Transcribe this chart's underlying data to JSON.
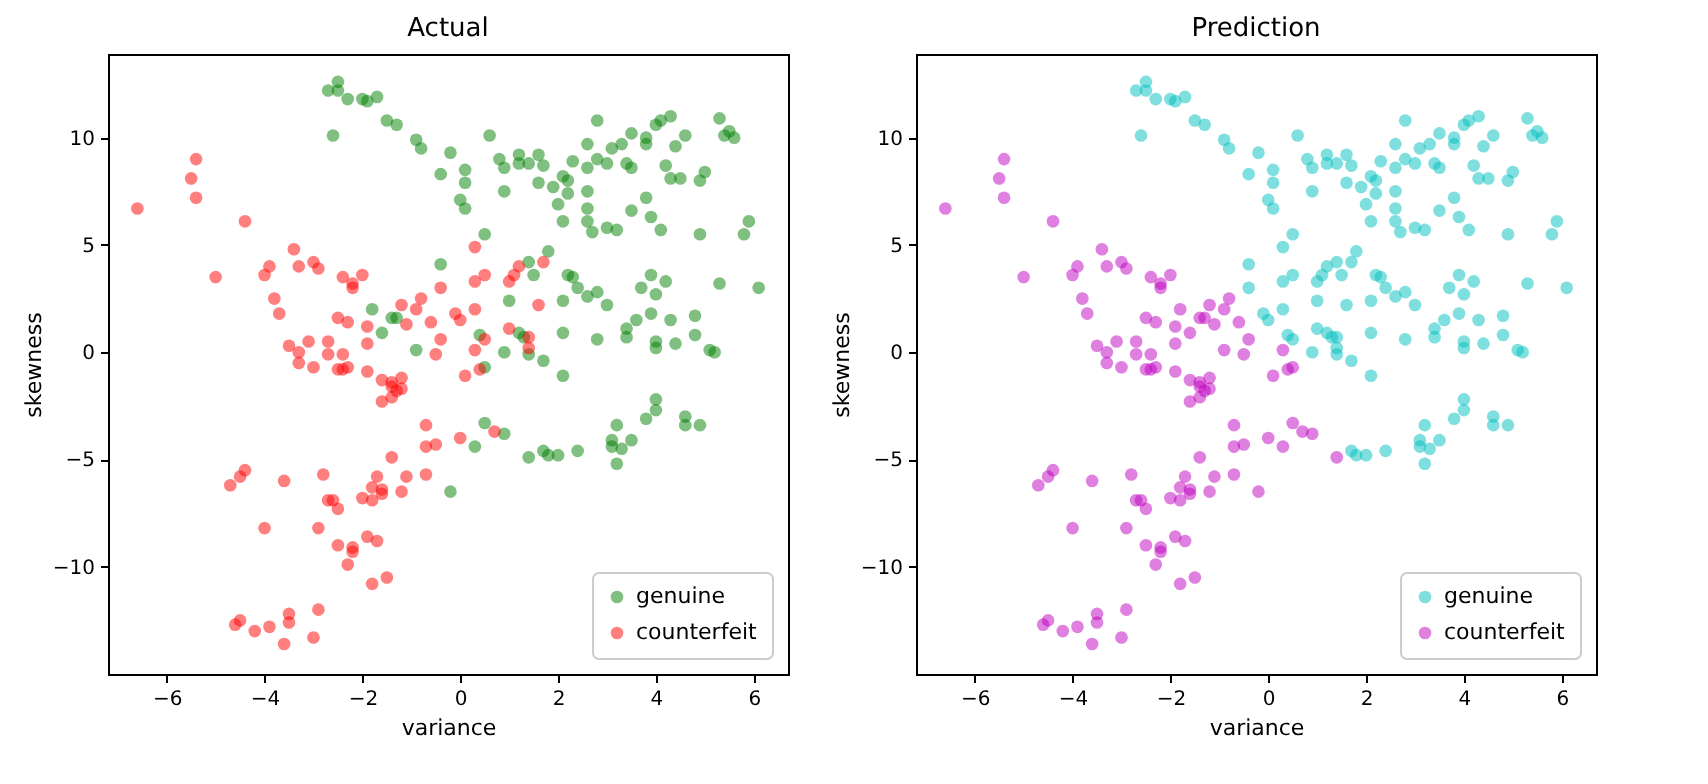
{
  "chart_data": [
    {
      "type": "scatter",
      "title": "Actual",
      "xlabel": "variance",
      "ylabel": "skewness",
      "xlim": [
        -7.2,
        6.7
      ],
      "ylim": [
        -15.0,
        13.9
      ],
      "xticks": [
        -6,
        -4,
        -2,
        0,
        2,
        4,
        6
      ],
      "yticks": [
        -10,
        -5,
        0,
        5,
        10
      ],
      "legend": "bottom right",
      "marker": "circle",
      "grid": false,
      "series": [
        {
          "name": "genuine",
          "color": "#008000",
          "x": [
            -2.7,
            -2.5,
            -2.5,
            -2.3,
            -2.0,
            -1.9,
            -1.7,
            -1.5,
            -1.3,
            -0.9,
            -0.8,
            -2.6,
            -0.2,
            0.6,
            -0.4,
            0.1,
            0.1,
            0.0,
            0.1,
            0.8,
            0.9,
            1.2,
            1.2,
            1.4,
            1.6,
            1.7,
            0.9,
            1.6,
            1.9,
            2.1,
            2.2,
            2.3,
            2.6,
            2.8,
            2.6,
            2.8,
            3.0,
            3.1,
            3.3,
            3.4,
            3.5,
            3.5,
            3.8,
            3.8,
            4.0,
            4.1,
            4.3,
            4.4,
            4.6,
            4.2,
            4.3,
            4.5,
            4.9,
            5.0,
            5.3,
            5.4,
            5.5,
            5.6,
            2.1,
            2.0,
            2.2,
            2.6,
            2.6,
            2.6,
            2.7,
            3.0,
            3.2,
            3.5,
            3.8,
            3.9,
            4.1,
            4.9,
            5.8,
            5.9,
            0.5,
            -0.4,
            1.4,
            1.8,
            1.5,
            2.2,
            2.3,
            2.4,
            2.6,
            2.8,
            3.0,
            2.1,
            1.0,
            3.7,
            3.9,
            4.2,
            4.0,
            3.9,
            4.3,
            3.6,
            3.4,
            3.4,
            4.0,
            4.0,
            4.4,
            4.8,
            4.8,
            5.1,
            5.2,
            5.3,
            6.1,
            2.1,
            2.8,
            1.7,
            2.1,
            0.9,
            0.4,
            1.2,
            1.3,
            1.4,
            1.7,
            1.8,
            2.0,
            2.4,
            3.1,
            3.2,
            3.1,
            3.3,
            3.2,
            3.5,
            3.8,
            4.0,
            4.0,
            4.6,
            4.6,
            4.9,
            -1.8,
            -1.4,
            -1.3,
            -1.6,
            -0.9,
            0.5,
            0.5,
            0.9,
            0.3,
            -0.2,
            1.4
          ],
          "values": [
            12.2,
            12.6,
            12.2,
            11.8,
            11.8,
            11.7,
            11.9,
            10.8,
            10.6,
            9.9,
            9.5,
            10.1,
            9.3,
            10.1,
            8.3,
            8.5,
            7.9,
            7.1,
            6.7,
            9.0,
            8.6,
            9.2,
            8.8,
            8.8,
            9.2,
            8.7,
            7.5,
            7.9,
            7.7,
            8.2,
            8.0,
            8.9,
            9.7,
            10.8,
            8.6,
            9.0,
            8.8,
            9.5,
            9.7,
            8.8,
            8.6,
            10.2,
            10.0,
            9.7,
            10.6,
            10.8,
            11.0,
            9.6,
            10.1,
            8.7,
            8.1,
            8.1,
            8.0,
            8.4,
            10.9,
            10.1,
            10.3,
            10.0,
            6.1,
            6.9,
            7.4,
            7.5,
            6.7,
            6.1,
            5.6,
            5.8,
            5.7,
            6.6,
            7.2,
            6.3,
            5.7,
            5.5,
            5.5,
            6.1,
            5.5,
            4.1,
            4.2,
            4.7,
            3.6,
            3.6,
            3.5,
            3.0,
            2.6,
            2.8,
            2.2,
            2.4,
            2.4,
            3.0,
            3.6,
            3.3,
            2.7,
            1.8,
            1.5,
            1.5,
            1.1,
            0.7,
            0.5,
            0.2,
            0.4,
            1.7,
            0.8,
            0.1,
            0.0,
            3.2,
            3.0,
            0.9,
            0.6,
            -0.4,
            -1.1,
            0.0,
            0.8,
            0.9,
            0.7,
            -0.1,
            -4.6,
            -4.8,
            -4.8,
            -4.6,
            -4.4,
            -3.4,
            -4.1,
            -4.5,
            -5.2,
            -4.1,
            -3.1,
            -2.2,
            -2.7,
            -3.0,
            -3.4,
            -3.4,
            2.0,
            1.6,
            1.6,
            0.9,
            0.1,
            -0.7,
            -3.3,
            -3.8,
            -4.4,
            -6.5,
            -4.9
          ]
        },
        {
          "name": "counterfeit",
          "color": "#ff0000",
          "x": [
            -6.6,
            -5.4,
            -5.5,
            -5.4,
            -4.4,
            -5.0,
            -3.4,
            -3.9,
            -4.0,
            -3.3,
            -3.0,
            -2.9,
            -2.4,
            -2.2,
            -2.2,
            -2.0,
            -3.8,
            -3.7,
            -2.5,
            -2.3,
            -1.9,
            -1.2,
            -0.8,
            -0.6,
            -0.9,
            -1.9,
            -3.5,
            -3.3,
            -3.1,
            -2.7,
            -2.7,
            -2.4,
            -3.3,
            -3.0,
            -2.5,
            -2.4,
            -2.3,
            -1.9,
            -1.1,
            -1.6,
            -1.4,
            -1.2,
            -1.4,
            -1.3,
            -1.2,
            -1.4,
            -1.6,
            -0.7,
            -0.7,
            -1.4,
            -0.7,
            -1.1,
            -1.2,
            -1.7,
            -1.8,
            -1.6,
            -1.6,
            -1.8,
            -2.0,
            -2.8,
            -2.7,
            -2.6,
            -2.5,
            -3.6,
            -4.4,
            -4.5,
            -4.7,
            -4.0,
            -2.9,
            -2.5,
            -2.2,
            -2.2,
            -2.3,
            -1.9,
            -1.7,
            -1.8,
            -1.5,
            -2.9,
            -3.5,
            -3.5,
            -4.5,
            -4.6,
            -4.2,
            -3.9,
            -3.6,
            -3.0,
            -0.4,
            -0.5,
            0.3,
            0.1,
            0.4,
            -0.5,
            0.0,
            0.7,
            0.3,
            1.2,
            1.1,
            1.0,
            0.5,
            0.3,
            1.7,
            1.6,
            -0.4,
            0.3,
            -0.1,
            0.0,
            0.5,
            1.0,
            1.4,
            1.4
          ],
          "values": [
            6.7,
            9.0,
            8.1,
            7.2,
            6.1,
            3.5,
            4.8,
            4.0,
            3.6,
            4.0,
            4.2,
            3.9,
            3.5,
            3.2,
            3.0,
            3.6,
            2.5,
            1.8,
            1.6,
            1.4,
            1.2,
            2.2,
            2.5,
            1.4,
            2.0,
            0.4,
            0.3,
            0.0,
            0.5,
            0.5,
            -0.1,
            -0.1,
            -0.5,
            -0.7,
            -0.8,
            -0.8,
            -0.7,
            -0.9,
            1.3,
            -1.3,
            -1.4,
            -1.2,
            -1.6,
            -1.8,
            -1.7,
            -2.1,
            -2.3,
            -3.4,
            -4.4,
            -4.9,
            -5.7,
            -5.8,
            -6.5,
            -5.8,
            -6.3,
            -6.4,
            -6.6,
            -6.9,
            -6.8,
            -5.7,
            -6.9,
            -6.9,
            -7.3,
            -6.0,
            -5.5,
            -5.8,
            -6.2,
            -8.2,
            -8.2,
            -9.0,
            -9.1,
            -9.3,
            -9.9,
            -8.6,
            -8.8,
            -10.8,
            -10.5,
            -12.0,
            -12.2,
            -12.6,
            -12.5,
            -12.7,
            -13.0,
            -12.8,
            -13.6,
            -13.3,
            0.6,
            -0.1,
            0.1,
            -1.1,
            -0.8,
            -4.3,
            -4.0,
            -3.7,
            4.9,
            4.0,
            3.6,
            3.3,
            3.6,
            3.3,
            4.2,
            2.2,
            3.0,
            2.0,
            1.8,
            1.5,
            0.6,
            1.1,
            0.7,
            0.2
          ]
        }
      ]
    },
    {
      "type": "scatter",
      "title": "Prediction",
      "xlabel": "variance",
      "ylabel": "skewness",
      "xlim": [
        -7.2,
        6.7
      ],
      "ylim": [
        -15.0,
        13.9
      ],
      "xticks": [
        -6,
        -4,
        -2,
        0,
        2,
        4,
        6
      ],
      "yticks": [
        -10,
        -5,
        0,
        5,
        10
      ],
      "legend": "bottom right",
      "marker": "circle",
      "grid": false,
      "series": [
        {
          "name": "genuine",
          "color": "#00bfbf",
          "x": [
            -2.7,
            -2.5,
            -2.5,
            -2.3,
            -2.0,
            -1.9,
            -1.7,
            -1.5,
            -1.3,
            -0.9,
            -0.8,
            -2.6,
            -0.2,
            0.6,
            -0.4,
            0.1,
            0.1,
            0.0,
            0.1,
            0.8,
            0.9,
            1.2,
            1.2,
            1.4,
            1.6,
            1.7,
            0.9,
            1.6,
            1.9,
            2.1,
            2.2,
            2.3,
            2.6,
            2.8,
            2.6,
            2.8,
            3.0,
            3.1,
            3.3,
            3.4,
            3.5,
            3.5,
            3.8,
            3.8,
            4.0,
            4.1,
            4.3,
            4.4,
            4.6,
            4.2,
            4.3,
            4.5,
            4.9,
            5.0,
            5.3,
            5.4,
            5.5,
            5.6,
            2.1,
            2.0,
            2.2,
            2.6,
            2.6,
            2.6,
            2.7,
            3.0,
            3.2,
            3.5,
            3.8,
            3.9,
            4.1,
            4.9,
            5.8,
            5.9,
            0.5,
            -0.4,
            1.4,
            1.8,
            1.5,
            2.2,
            2.3,
            2.4,
            2.6,
            2.8,
            3.0,
            2.1,
            1.0,
            3.7,
            3.9,
            4.2,
            4.0,
            3.9,
            4.3,
            3.6,
            3.4,
            3.4,
            4.0,
            4.0,
            4.4,
            4.8,
            4.8,
            5.1,
            5.2,
            5.3,
            6.1,
            2.1,
            2.8,
            1.7,
            2.1,
            0.9,
            0.4,
            1.2,
            1.3,
            1.4,
            1.7,
            1.8,
            2.0,
            2.4,
            3.1,
            3.2,
            3.1,
            3.3,
            3.2,
            3.5,
            3.8,
            4.0,
            4.0,
            4.6,
            4.6,
            4.9,
            0.3,
            1.2,
            1.1,
            1.0,
            0.5,
            0.3,
            1.7,
            1.6,
            -0.4,
            0.3,
            -0.1,
            0.0,
            0.5,
            1.0,
            1.4,
            1.4
          ],
          "values": [
            12.2,
            12.6,
            12.2,
            11.8,
            11.8,
            11.7,
            11.9,
            10.8,
            10.6,
            9.9,
            9.5,
            10.1,
            9.3,
            10.1,
            8.3,
            8.5,
            7.9,
            7.1,
            6.7,
            9.0,
            8.6,
            9.2,
            8.8,
            8.8,
            9.2,
            8.7,
            7.5,
            7.9,
            7.7,
            8.2,
            8.0,
            8.9,
            9.7,
            10.8,
            8.6,
            9.0,
            8.8,
            9.5,
            9.7,
            8.8,
            8.6,
            10.2,
            10.0,
            9.7,
            10.6,
            10.8,
            11.0,
            9.6,
            10.1,
            8.7,
            8.1,
            8.1,
            8.0,
            8.4,
            10.9,
            10.1,
            10.3,
            10.0,
            6.1,
            6.9,
            7.4,
            7.5,
            6.7,
            6.1,
            5.6,
            5.8,
            5.7,
            6.6,
            7.2,
            6.3,
            5.7,
            5.5,
            5.5,
            6.1,
            5.5,
            4.1,
            4.2,
            4.7,
            3.6,
            3.6,
            3.5,
            3.0,
            2.6,
            2.8,
            2.2,
            2.4,
            2.4,
            3.0,
            3.6,
            3.3,
            2.7,
            1.8,
            1.5,
            1.5,
            1.1,
            0.7,
            0.5,
            0.2,
            0.4,
            1.7,
            0.8,
            0.1,
            0.0,
            3.2,
            3.0,
            0.9,
            0.6,
            -0.4,
            -1.1,
            0.0,
            0.8,
            0.9,
            0.7,
            -0.1,
            -4.6,
            -4.8,
            -4.8,
            -4.6,
            -4.4,
            -3.4,
            -4.1,
            -4.5,
            -5.2,
            -4.1,
            -3.1,
            -2.2,
            -2.7,
            -3.0,
            -3.4,
            -3.4,
            4.9,
            4.0,
            3.6,
            3.3,
            3.6,
            3.3,
            4.2,
            2.2,
            3.0,
            2.0,
            1.8,
            1.5,
            0.6,
            1.1,
            0.7,
            0.2
          ]
        },
        {
          "name": "counterfeit",
          "color": "#bf00bf",
          "x": [
            -6.6,
            -5.4,
            -5.5,
            -5.4,
            -4.4,
            -5.0,
            -3.4,
            -3.9,
            -4.0,
            -3.3,
            -3.0,
            -2.9,
            -2.4,
            -2.2,
            -2.2,
            -2.0,
            -3.8,
            -3.7,
            -2.5,
            -2.3,
            -1.9,
            -1.2,
            -0.8,
            -0.6,
            -0.9,
            -1.9,
            -3.5,
            -3.3,
            -3.1,
            -2.7,
            -2.7,
            -2.4,
            -3.3,
            -3.0,
            -2.5,
            -2.4,
            -2.3,
            -1.9,
            -1.1,
            -1.6,
            -1.4,
            -1.2,
            -1.4,
            -1.3,
            -1.2,
            -1.4,
            -1.6,
            -0.7,
            -0.7,
            -1.4,
            -0.7,
            -1.1,
            -1.2,
            -1.7,
            -1.8,
            -1.6,
            -1.6,
            -1.8,
            -2.0,
            -2.8,
            -2.7,
            -2.6,
            -2.5,
            -3.6,
            -4.4,
            -4.5,
            -4.7,
            -4.0,
            -2.9,
            -2.5,
            -2.2,
            -2.2,
            -2.3,
            -1.9,
            -1.7,
            -1.8,
            -1.5,
            -2.9,
            -3.5,
            -3.5,
            -4.5,
            -4.6,
            -4.2,
            -3.9,
            -3.6,
            -3.0,
            -0.4,
            -0.5,
            0.3,
            0.1,
            0.4,
            -0.5,
            0.0,
            0.7,
            -1.8,
            -1.4,
            -1.3,
            -1.6,
            -0.9,
            0.5,
            0.5,
            0.9,
            0.3,
            -0.2,
            1.4
          ],
          "values": [
            6.7,
            9.0,
            8.1,
            7.2,
            6.1,
            3.5,
            4.8,
            4.0,
            3.6,
            4.0,
            4.2,
            3.9,
            3.5,
            3.2,
            3.0,
            3.6,
            2.5,
            1.8,
            1.6,
            1.4,
            1.2,
            2.2,
            2.5,
            1.4,
            2.0,
            0.4,
            0.3,
            0.0,
            0.5,
            0.5,
            -0.1,
            -0.1,
            -0.5,
            -0.7,
            -0.8,
            -0.8,
            -0.7,
            -0.9,
            1.3,
            -1.3,
            -1.4,
            -1.2,
            -1.6,
            -1.8,
            -1.7,
            -2.1,
            -2.3,
            -3.4,
            -4.4,
            -4.9,
            -5.7,
            -5.8,
            -6.5,
            -5.8,
            -6.3,
            -6.4,
            -6.6,
            -6.9,
            -6.8,
            -5.7,
            -6.9,
            -6.9,
            -7.3,
            -6.0,
            -5.5,
            -5.8,
            -6.2,
            -8.2,
            -8.2,
            -9.0,
            -9.1,
            -9.3,
            -9.9,
            -8.6,
            -8.8,
            -10.8,
            -10.5,
            -12.0,
            -12.2,
            -12.6,
            -12.5,
            -12.7,
            -13.0,
            -12.8,
            -13.6,
            -13.3,
            0.6,
            -0.1,
            0.1,
            -1.1,
            -0.8,
            -4.3,
            -4.0,
            -3.7,
            2.0,
            1.6,
            1.6,
            0.9,
            0.1,
            -0.7,
            -3.3,
            -3.8,
            -4.4,
            -6.5,
            -4.9
          ]
        }
      ]
    }
  ]
}
